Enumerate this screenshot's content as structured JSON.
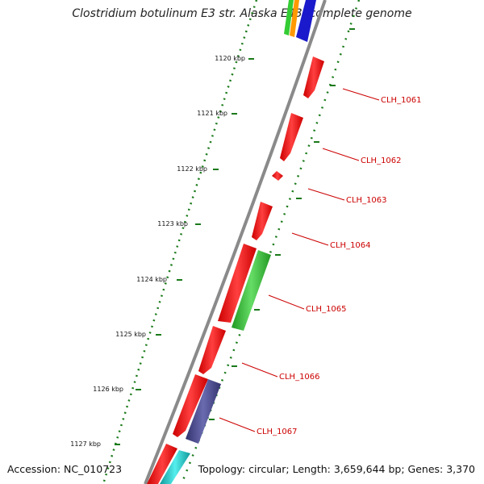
{
  "title": "Clostridium botulinum E3 str. Alaska E43, complete genome",
  "accession": "Accession: NC_010723",
  "summary": "Topology: circular; Length: 3,659,644 bp; Genes: 3,370",
  "colors": {
    "backbone": "#8a8a8a",
    "tick": "#1a7a1a",
    "forward_gene": "#ff1a1a",
    "label": "#cc0000",
    "green_feature": "#33cc33",
    "purple_feature": "#4a4a9a",
    "cyan_feature": "#22cccc",
    "blue_feature": "#1a1acc",
    "orange_feature": "#ff9900"
  },
  "ticks": [
    {
      "kbp": 1120,
      "label": "1120 kbp"
    },
    {
      "kbp": 1121,
      "label": "1121 kbp"
    },
    {
      "kbp": 1122,
      "label": "1122 kbp"
    },
    {
      "kbp": 1123,
      "label": "1123 kbp"
    },
    {
      "kbp": 1124,
      "label": "1124 kbp"
    },
    {
      "kbp": 1125,
      "label": "1125 kbp"
    },
    {
      "kbp": 1126,
      "label": "1126 kbp"
    },
    {
      "kbp": 1127,
      "label": "1127 kbp"
    }
  ],
  "genes": [
    {
      "name": "CLH_1061",
      "label": "CLH_1061",
      "color": "forward_gene"
    },
    {
      "name": "CLH_1062",
      "label": "CLH_1062",
      "color": "forward_gene"
    },
    {
      "name": "CLH_1063",
      "label": "CLH_1063",
      "color": "forward_gene"
    },
    {
      "name": "CLH_1064",
      "label": "CLH_1064",
      "color": "forward_gene"
    },
    {
      "name": "CLH_1065",
      "label": "CLH_1065",
      "color": "forward_gene"
    },
    {
      "name": "CLH_1066",
      "label": "CLH_1066",
      "color": "forward_gene"
    },
    {
      "name": "CLH_1067",
      "label": "CLH_1067",
      "color": "forward_gene"
    }
  ]
}
